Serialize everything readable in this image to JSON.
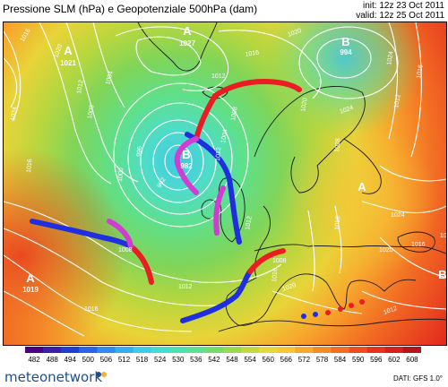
{
  "header": {
    "title": "Pressione SLM (hPa) e Geopotenziale 500hPa (dam)",
    "init": "init: 12z 23 Oct 2011",
    "valid": "valid: 12z 25 Oct 2011"
  },
  "map": {
    "isobar_labels": [
      "1016",
      "1020",
      "1024",
      "1012",
      "1008",
      "1004",
      "1000",
      "996",
      "992",
      "1012",
      "1016",
      "1020",
      "1024",
      "1008",
      "1004",
      "1012",
      "1016",
      "1008",
      "1012",
      "1016",
      "1020",
      "1024",
      "1028",
      "1024",
      "1020",
      "1016",
      "1012",
      "1008",
      "1020",
      "1016",
      "1012",
      "1020",
      "1016",
      "1016",
      "1012"
    ],
    "pressure_centers": [
      {
        "letter": "A",
        "value": "1027"
      },
      {
        "letter": "A",
        "value": "1021"
      },
      {
        "letter": "B",
        "value": "994"
      },
      {
        "letter": "B",
        "value": "982"
      },
      {
        "letter": "A",
        "value": ""
      },
      {
        "letter": "A",
        "value": "1019"
      },
      {
        "letter": "B",
        "value": ""
      }
    ]
  },
  "scale": {
    "labels": [
      "482",
      "488",
      "494",
      "500",
      "506",
      "512",
      "518",
      "524",
      "530",
      "536",
      "542",
      "548",
      "554",
      "560",
      "566",
      "572",
      "578",
      "584",
      "590",
      "596",
      "602",
      "608"
    ],
    "colors": [
      "#4b0082",
      "#3a1fa8",
      "#1f3fd0",
      "#2a63e8",
      "#2f8bef",
      "#35aef0",
      "#3ccbe8",
      "#44dcd0",
      "#4fe0b0",
      "#5ee090",
      "#74dc6a",
      "#9ad84e",
      "#c2d83c",
      "#e6d838",
      "#f6c633",
      "#f7a82d",
      "#f58a28",
      "#f26c23",
      "#ef4d1f",
      "#e8321d",
      "#d6201c",
      "#b3151c"
    ]
  },
  "footer": {
    "brand": "meteonetwork",
    "dati": "DATI:  GFS  1.0°"
  }
}
